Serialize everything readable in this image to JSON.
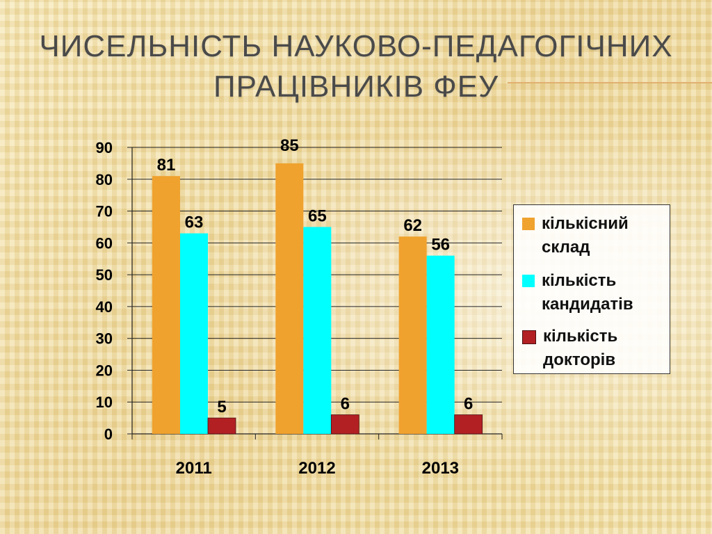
{
  "slide": {
    "title_line1": "ЧИСЕЛЬНІСТЬ НАУКОВО-ПЕДАГОГІЧНИХ",
    "title_line2": "ПРАЦІВНИКІВ ФЕУ"
  },
  "chart_data": {
    "type": "bar",
    "categories": [
      "2011",
      "2012",
      "2013"
    ],
    "series": [
      {
        "name": "кількісний склад",
        "values": [
          81,
          85,
          62
        ],
        "color": "#f0a22e"
      },
      {
        "name": "кількість кандидатів",
        "values": [
          63,
          65,
          56
        ],
        "color": "#00ffff"
      },
      {
        "name": "кількість докторів",
        "values": [
          5,
          6,
          6
        ],
        "color": "#b22024"
      }
    ],
    "ylim": [
      0,
      90
    ],
    "yticks": [
      "0",
      "10",
      "20",
      "30",
      "40",
      "50",
      "60",
      "70",
      "80",
      "90"
    ],
    "grid": true,
    "legend_position": "right"
  }
}
